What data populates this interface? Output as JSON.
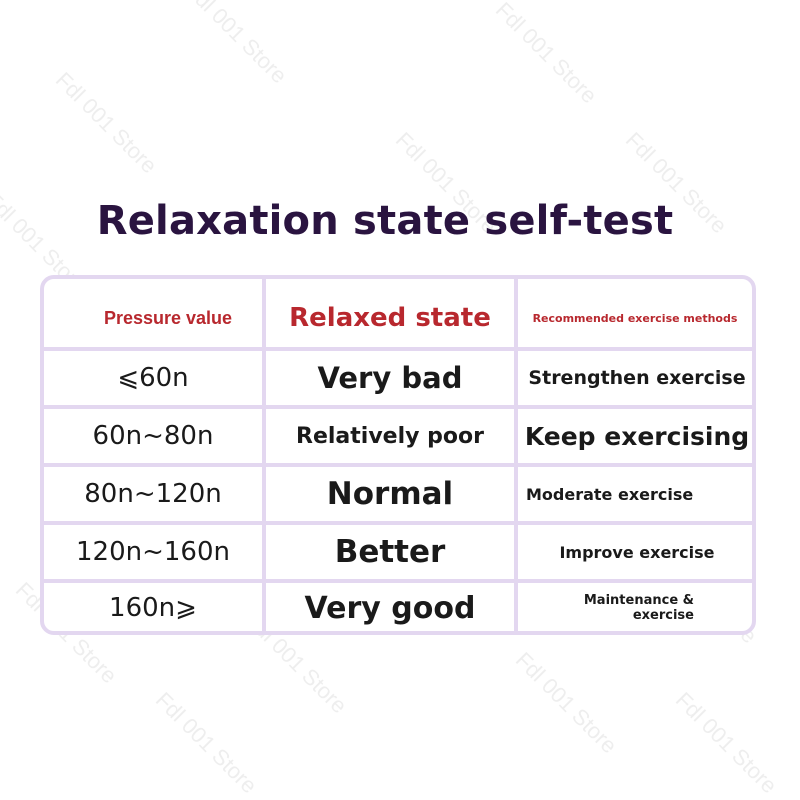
{
  "title": "Relaxation state self-test",
  "watermark_text": "Fdl 001 Store",
  "colors": {
    "title": "#2a1440",
    "header_text": "#b8282e",
    "table_border": "#e3d7f0",
    "cell_text": "#1a1a1a"
  },
  "table": {
    "headers": [
      "Pressure value",
      "Relaxed state",
      "Recommended exercise methods"
    ],
    "rows": [
      {
        "pressure": "⩽60n",
        "state": "Very bad",
        "exercise": "Strengthen exercise"
      },
      {
        "pressure": "60n~80n",
        "state": "Relatively poor",
        "exercise": "Keep exercising"
      },
      {
        "pressure": "80n~120n",
        "state": "Normal",
        "exercise": "Moderate exercise"
      },
      {
        "pressure": "120n~160n",
        "state": "Better",
        "exercise": "Improve exercise"
      },
      {
        "pressure": "160n⩾",
        "state": "Very good",
        "exercise": "Maintenance & exercise"
      }
    ]
  }
}
